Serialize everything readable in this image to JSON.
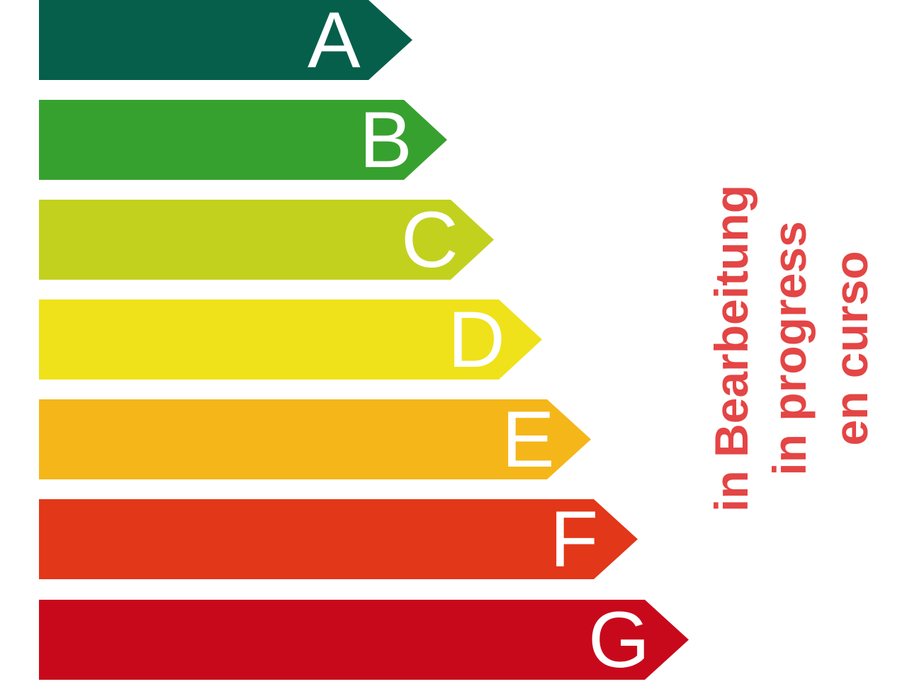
{
  "classes": [
    {
      "label": "A",
      "color": "#065f4b"
    },
    {
      "label": "B",
      "color": "#37a12f"
    },
    {
      "label": "C",
      "color": "#c2d11e"
    },
    {
      "label": "D",
      "color": "#efe21a"
    },
    {
      "label": "E",
      "color": "#f5b619"
    },
    {
      "label": "F",
      "color": "#e23719"
    },
    {
      "label": "G",
      "color": "#c8091c"
    }
  ],
  "status": {
    "color": "#e44545",
    "lines": [
      "in Bearbeitung",
      "in progress",
      "en curso"
    ]
  }
}
